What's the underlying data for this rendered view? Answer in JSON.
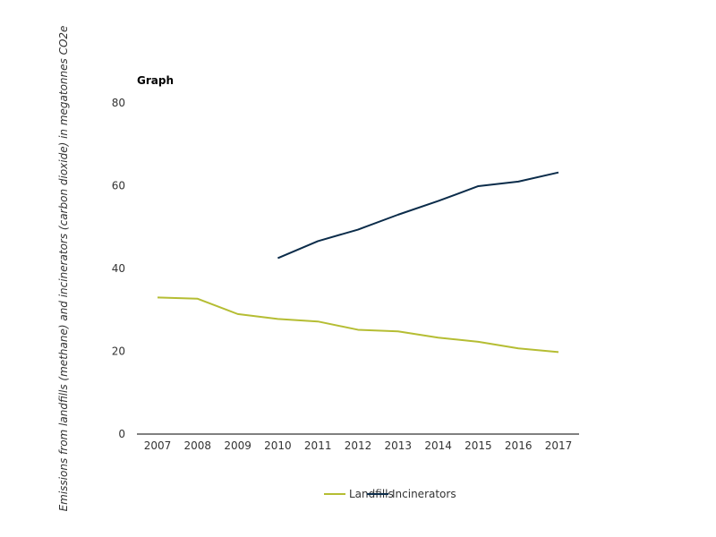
{
  "chart_data": {
    "type": "line",
    "title": "Graph",
    "ylabel": "Emissions from landfills (methane) and incinerators (carbon dioxide) in megatonnes CO2e",
    "xlabel": "",
    "categories": [
      "2007",
      "2008",
      "2009",
      "2010",
      "2011",
      "2012",
      "2013",
      "2014",
      "2015",
      "2016",
      "2017"
    ],
    "ylim": [
      0,
      80
    ],
    "yticks": [
      0,
      20,
      40,
      60,
      80
    ],
    "grid": false,
    "legend_position": "bottom",
    "series": [
      {
        "name": "Landfills",
        "color": "#b5bd33",
        "values": [
          33,
          32.7,
          29,
          27.8,
          27.2,
          25.2,
          24.8,
          23.3,
          22.3,
          20.7,
          19.8
        ]
      },
      {
        "name": "Incinerators",
        "color": "#0b2c4a",
        "values": [
          null,
          null,
          null,
          42.5,
          46.6,
          49.4,
          53,
          56.3,
          59.9,
          61,
          63.2
        ]
      }
    ]
  }
}
